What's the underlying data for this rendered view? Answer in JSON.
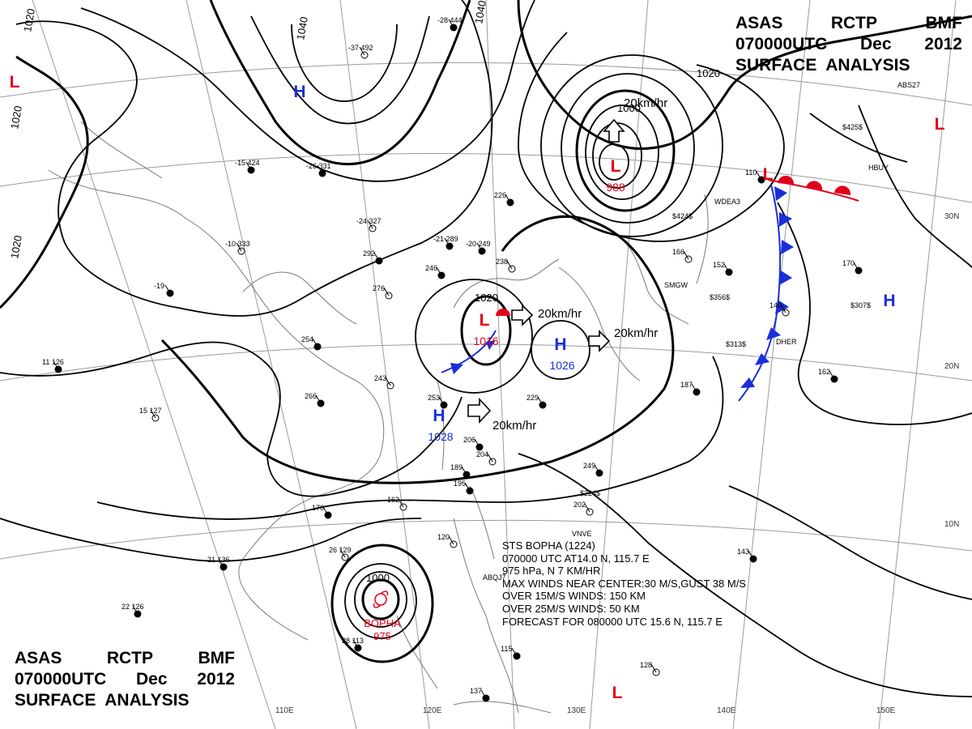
{
  "title": {
    "line1": [
      "ASAS",
      "RCTP",
      "BMF"
    ],
    "line2": [
      "070000UTC",
      "Dec",
      "2012"
    ],
    "line3": "SURFACE  ANALYSIS"
  },
  "graticule": {
    "lon_labels": [
      "110E",
      "120E",
      "130E",
      "140E",
      "150E"
    ],
    "lat_labels": [
      "30N",
      "20N",
      "10N"
    ]
  },
  "isobars": {
    "labels": [
      "1020",
      "1040",
      "1040",
      "1020",
      "1020",
      "1020"
    ]
  },
  "pressure_centers": [
    {
      "type": "H",
      "color": "#1a2fd6"
    },
    {
      "type": "H",
      "value": "1028",
      "color": "#1a2fd6"
    },
    {
      "type": "H",
      "value": "1026",
      "color": "#1a2fd6"
    },
    {
      "type": "H",
      "color": "#1a2fd6"
    },
    {
      "type": "L",
      "value": "1016",
      "color": "#e0001a"
    },
    {
      "type": "L",
      "value": "988",
      "color": "#e0001a"
    },
    {
      "type": "L",
      "color": "#e0001a"
    },
    {
      "type": "L",
      "color": "#e0001a"
    },
    {
      "type": "L",
      "color": "#e0001a"
    },
    {
      "type": "L",
      "color": "#e0001a"
    }
  ],
  "center_isobar_labels": [
    "1020",
    "1000",
    "1000"
  ],
  "motion_vectors": [
    "20km/hr",
    "20km/hr",
    "20km/hr",
    "20km/hr"
  ],
  "typhoon": {
    "name": "BOPHA",
    "pressure": "975",
    "symbol": "typhoon-icon",
    "info": [
      "STS  BOPHA  (1224)",
      "070000 UTC  AT14.0 N, 115.7 E",
      "975 hPa, N  7 KM/HR",
      "MAX WINDS NEAR CENTER:30 M/S,GUST 38 M/S",
      "OVER 15M/S WINDS: 150 KM",
      "OVER 25M/S WINDS: 50 KM",
      "FORECAST FOR 080000 UTC 15.6 N, 115.7 E"
    ]
  },
  "station_samples": [
    "-28 444",
    "-37 492",
    "-15 424",
    "-26 331",
    "-24 327",
    "-21 289",
    "-20 249",
    "-10 333",
    "-19",
    "11 126",
    "15 127",
    "21 136",
    "22 126",
    "26 129",
    "28 113",
    "253",
    "243",
    "229",
    "206",
    "204",
    "195",
    "189",
    "162",
    "170",
    "249",
    "202",
    "187",
    "162",
    "166",
    "152",
    "170",
    "140",
    "110",
    "143",
    "128",
    "137",
    "115",
    "120",
    "266",
    "254",
    "276",
    "292",
    "246",
    "238",
    "226"
  ],
  "station_ids": [
    "ABS27",
    "HBUY",
    "SMGW",
    "$356$",
    "$313$",
    "$424$",
    "$425$",
    "$307$",
    "WDEA3",
    "DHER",
    "VNVE",
    "$224$",
    "ABQJ7"
  ],
  "colors": {
    "front_red": "#e0001a",
    "front_blue": "#1a2fd6",
    "high": "#1a2fd6",
    "low": "#e0001a"
  }
}
